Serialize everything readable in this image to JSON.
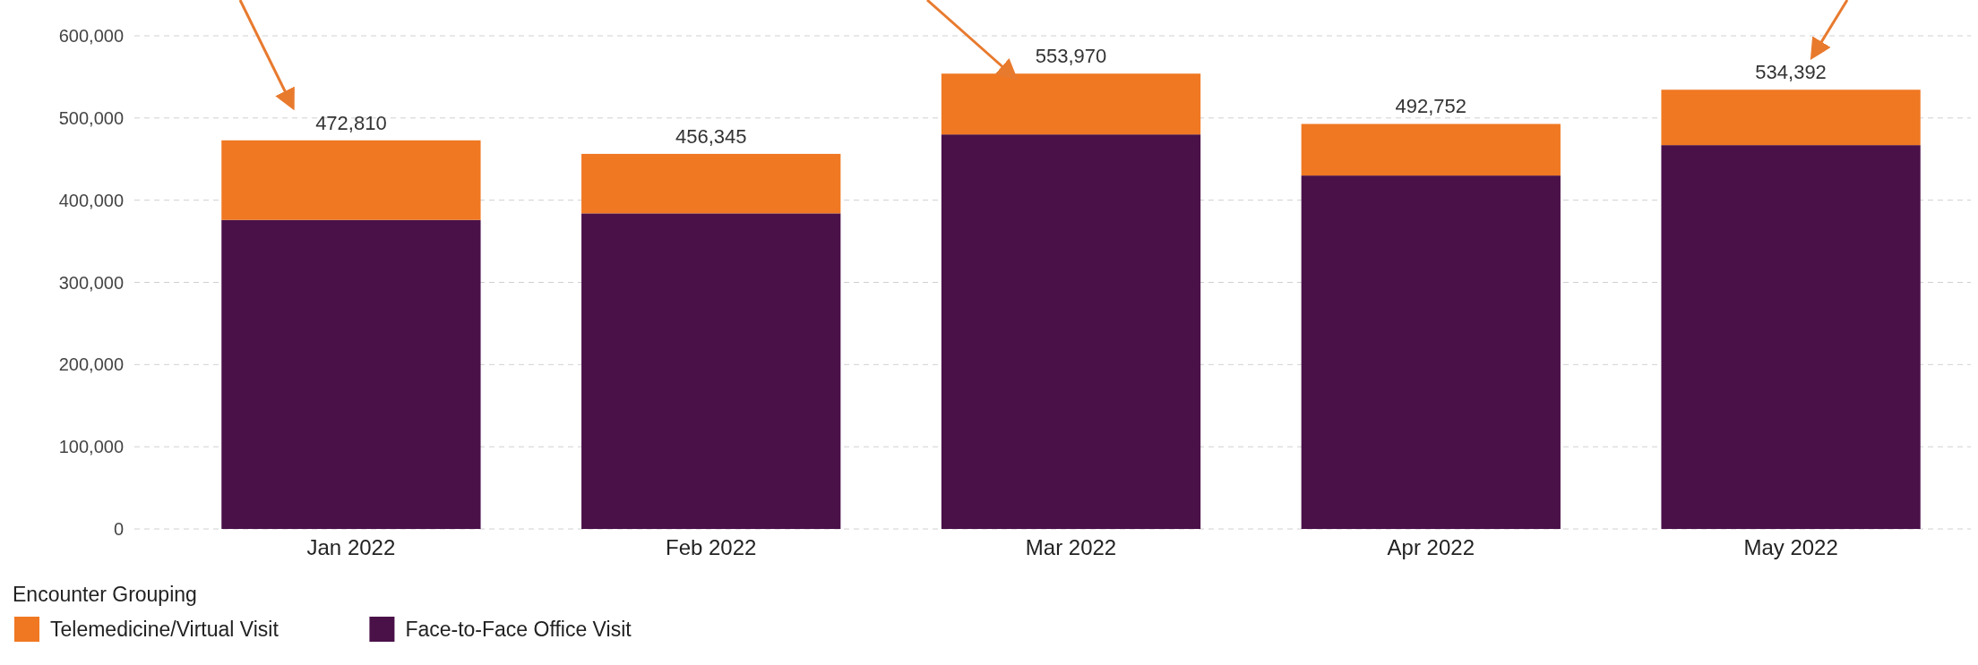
{
  "chart_data": {
    "type": "bar",
    "stacked": true,
    "legend_title": "Encounter Grouping",
    "legend": "bottom left",
    "grid": "y",
    "categories": [
      "Jan 2022",
      "Feb 2022",
      "Mar 2022",
      "Apr 2022",
      "May 2022"
    ],
    "series": [
      {
        "name": "Face-to-Face Office Visit",
        "color": "#4a1148",
        "values": [
          376000,
          384000,
          480000,
          430000,
          467000
        ]
      },
      {
        "name": "Telemedicine/Virtual Visit",
        "color": "#f07822",
        "values": [
          96810,
          72345,
          73970,
          62752,
          67392
        ]
      }
    ],
    "totals": [
      "472,810",
      "456,345",
      "553,970",
      "492,752",
      "534,392"
    ],
    "ylim": [
      0,
      600000
    ],
    "yticks": [
      {
        "value": 0,
        "label": "0"
      },
      {
        "value": 100000,
        "label": "100,000"
      },
      {
        "value": 200000,
        "label": "200,000"
      },
      {
        "value": 300000,
        "label": "300,000"
      },
      {
        "value": 400000,
        "label": "400,000"
      },
      {
        "value": 500000,
        "label": "500,000"
      },
      {
        "value": 600000,
        "label": "600,000"
      }
    ]
  }
}
